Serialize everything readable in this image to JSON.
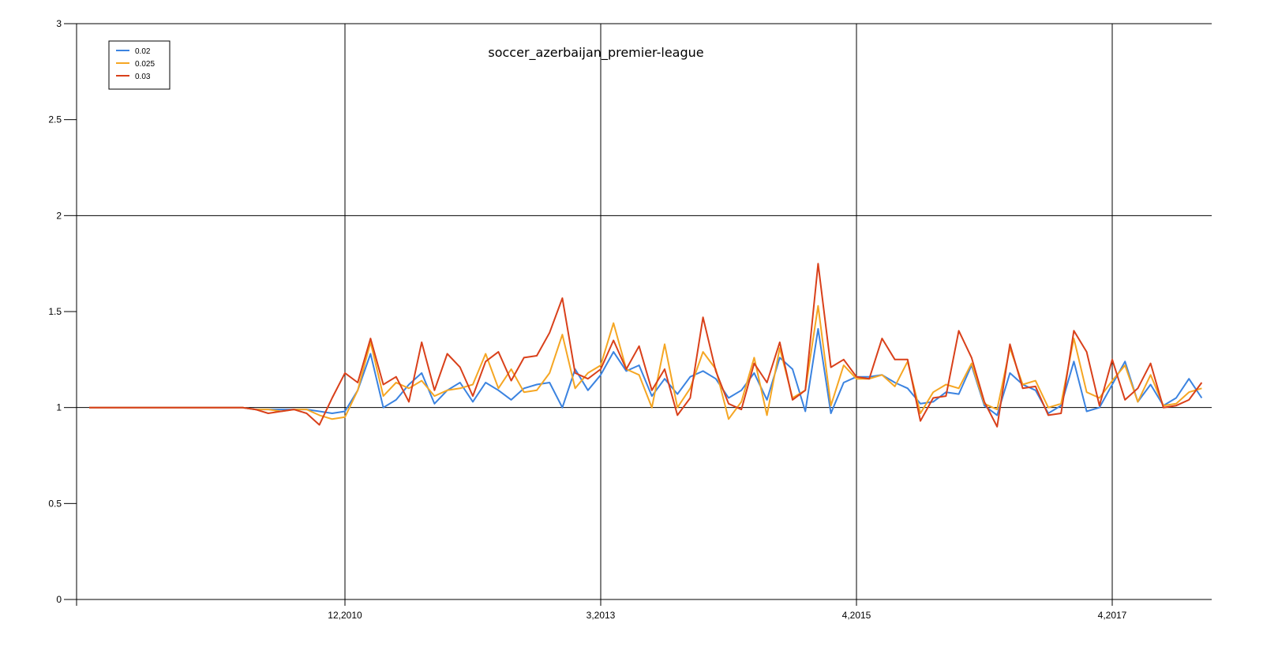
{
  "chart_data": {
    "type": "line",
    "title": "soccer_azerbaijan_premier-league",
    "xlabel": "",
    "ylabel": "",
    "ylim": [
      0,
      3
    ],
    "yticks": [
      "0",
      "0.5",
      "1",
      "1.5",
      "2",
      "2.5",
      "3"
    ],
    "xticks": [
      {
        "label": "12,2010",
        "index": 20
      },
      {
        "label": "3,2013",
        "index": 40
      },
      {
        "label": "4,2015",
        "index": 60
      },
      {
        "label": "4,2017",
        "index": 80
      }
    ],
    "grid": {
      "x": true,
      "y_at": [
        1,
        2,
        3
      ]
    },
    "legend_position": "top-left",
    "colors": {
      "0.02": "#3b83e0",
      "0.025": "#f5a623",
      "0.03": "#d9401a"
    },
    "x": [
      0,
      1,
      2,
      3,
      4,
      5,
      6,
      7,
      8,
      9,
      10,
      11,
      12,
      13,
      14,
      15,
      16,
      17,
      18,
      19,
      20,
      21,
      22,
      23,
      24,
      25,
      26,
      27,
      28,
      29,
      30,
      31,
      32,
      33,
      34,
      35,
      36,
      37,
      38,
      39,
      40,
      41,
      42,
      43,
      44,
      45,
      46,
      47,
      48,
      49,
      50,
      51,
      52,
      53,
      54,
      55,
      56,
      57,
      58,
      59,
      60,
      61,
      62,
      63,
      64,
      65,
      66,
      67,
      68,
      69,
      70,
      71,
      72,
      73,
      74,
      75,
      76,
      77,
      78,
      79,
      80,
      81,
      82,
      83,
      84,
      85,
      86,
      87
    ],
    "series": [
      {
        "name": "0.02",
        "values": [
          1,
          1,
          1,
          1,
          1,
          1,
          1,
          1,
          1,
          1,
          1,
          1,
          1,
          0.99,
          0.99,
          0.99,
          0.99,
          0.99,
          0.98,
          0.97,
          0.98,
          1.09,
          1.28,
          1.0,
          1.04,
          1.12,
          1.18,
          1.02,
          1.09,
          1.13,
          1.03,
          1.13,
          1.09,
          1.04,
          1.1,
          1.12,
          1.13,
          1.0,
          1.2,
          1.09,
          1.17,
          1.29,
          1.19,
          1.22,
          1.06,
          1.15,
          1.07,
          1.16,
          1.19,
          1.15,
          1.05,
          1.09,
          1.18,
          1.04,
          1.26,
          1.2,
          0.98,
          1.41,
          0.97,
          1.13,
          1.16,
          1.16,
          1.17,
          1.13,
          1.1,
          1.02,
          1.03,
          1.08,
          1.07,
          1.22,
          1.01,
          0.96,
          1.18,
          1.12,
          1.09,
          0.97,
          1.01,
          1.24,
          0.98,
          1.0,
          1.12,
          1.24,
          1.03,
          1.12,
          1.01,
          1.05,
          1.15,
          1.05
        ]
      },
      {
        "name": "0.025",
        "values": [
          1,
          1,
          1,
          1,
          1,
          1,
          1,
          1,
          1,
          1,
          1,
          1,
          1,
          0.99,
          0.99,
          0.98,
          0.99,
          0.99,
          0.96,
          0.94,
          0.95,
          1.09,
          1.34,
          1.06,
          1.13,
          1.1,
          1.14,
          1.06,
          1.09,
          1.1,
          1.12,
          1.28,
          1.1,
          1.2,
          1.08,
          1.09,
          1.18,
          1.38,
          1.1,
          1.18,
          1.22,
          1.44,
          1.2,
          1.17,
          1.0,
          1.33,
          1.0,
          1.1,
          1.29,
          1.2,
          0.94,
          1.03,
          1.26,
          0.96,
          1.31,
          1.05,
          1.09,
          1.53,
          1.01,
          1.22,
          1.15,
          1.15,
          1.17,
          1.11,
          1.24,
          0.97,
          1.08,
          1.12,
          1.1,
          1.23,
          1.02,
          0.99,
          1.31,
          1.12,
          1.14,
          1.0,
          1.02,
          1.36,
          1.08,
          1.05,
          1.14,
          1.22,
          1.03,
          1.17,
          1.01,
          1.02,
          1.08,
          1.1
        ]
      },
      {
        "name": "0.03",
        "values": [
          1,
          1,
          1,
          1,
          1,
          1,
          1,
          1,
          1,
          1,
          1,
          1,
          1,
          0.99,
          0.97,
          0.98,
          0.99,
          0.97,
          0.91,
          1.05,
          1.18,
          1.13,
          1.36,
          1.12,
          1.16,
          1.03,
          1.34,
          1.09,
          1.28,
          1.21,
          1.06,
          1.24,
          1.29,
          1.14,
          1.26,
          1.27,
          1.39,
          1.57,
          1.18,
          1.15,
          1.2,
          1.35,
          1.2,
          1.32,
          1.09,
          1.2,
          0.96,
          1.05,
          1.47,
          1.19,
          1.02,
          0.99,
          1.23,
          1.13,
          1.34,
          1.04,
          1.09,
          1.75,
          1.21,
          1.25,
          1.16,
          1.15,
          1.36,
          1.25,
          1.25,
          0.93,
          1.05,
          1.06,
          1.4,
          1.26,
          1.03,
          0.9,
          1.33,
          1.1,
          1.11,
          0.96,
          0.97,
          1.4,
          1.29,
          1.01,
          1.25,
          1.04,
          1.1,
          1.23,
          1.0,
          1.01,
          1.04,
          1.13
        ]
      }
    ]
  }
}
